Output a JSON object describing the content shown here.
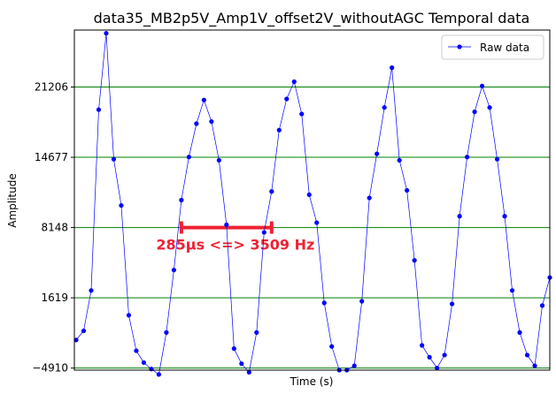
{
  "chart_data": {
    "type": "line",
    "title": "data35_MB2p5V_Amp1V_offset2V_withoutAGC Temporal data",
    "xlabel": "Time (s)",
    "ylabel": "Amplitude",
    "x_ticks_visible": false,
    "ylim": [
      -5100,
      26500
    ],
    "yticks": [
      -4910,
      1619,
      8148,
      14677,
      21206
    ],
    "ytick_labels": [
      "−4910",
      "1619",
      "8148",
      "14677",
      "21206"
    ],
    "grid": {
      "horizontal": true,
      "color": "#008000"
    },
    "legend": {
      "position": "top-right",
      "entries": [
        "Raw data"
      ]
    },
    "series": [
      {
        "name": "Raw data",
        "color": "#0000ff",
        "marker": "circle",
        "x": [
          0,
          1,
          2,
          3,
          4,
          5,
          6,
          7,
          8,
          9,
          10,
          11,
          12,
          13,
          14,
          15,
          16,
          17,
          18,
          19,
          20,
          21,
          22,
          23,
          24,
          25,
          26,
          27,
          28,
          29,
          30,
          31,
          32,
          33,
          34,
          35,
          36,
          37,
          38,
          39,
          40,
          41,
          42,
          43,
          44,
          45,
          46,
          47,
          48,
          49,
          50,
          51,
          52,
          53,
          54,
          55,
          56,
          57,
          58,
          59,
          60,
          61,
          62,
          63
        ],
        "y": [
          -2300,
          -1450,
          2300,
          19100,
          26200,
          14500,
          10200,
          0,
          -3300,
          -4400,
          -5000,
          -5500,
          -1600,
          4200,
          10700,
          14700,
          17800,
          20000,
          18000,
          14400,
          8400,
          -3100,
          -4500,
          -5300,
          -1600,
          7700,
          11500,
          17200,
          20100,
          21700,
          18700,
          11200,
          8600,
          1150,
          -2900,
          -5100,
          -5100,
          -4700,
          1300,
          10900,
          15000,
          19300,
          23000,
          14400,
          11600,
          5100,
          -2800,
          -3900,
          -4900,
          -3700,
          1050,
          9200,
          14700,
          18900,
          21300,
          19300,
          14500,
          9200,
          2300,
          -1600,
          -3700,
          -4700,
          900,
          3500
        ]
      }
    ],
    "annotation": {
      "text": "285μs <=> 3509 Hz",
      "color": "#ee2233",
      "span_x": [
        14,
        26
      ],
      "y": 8148
    }
  }
}
